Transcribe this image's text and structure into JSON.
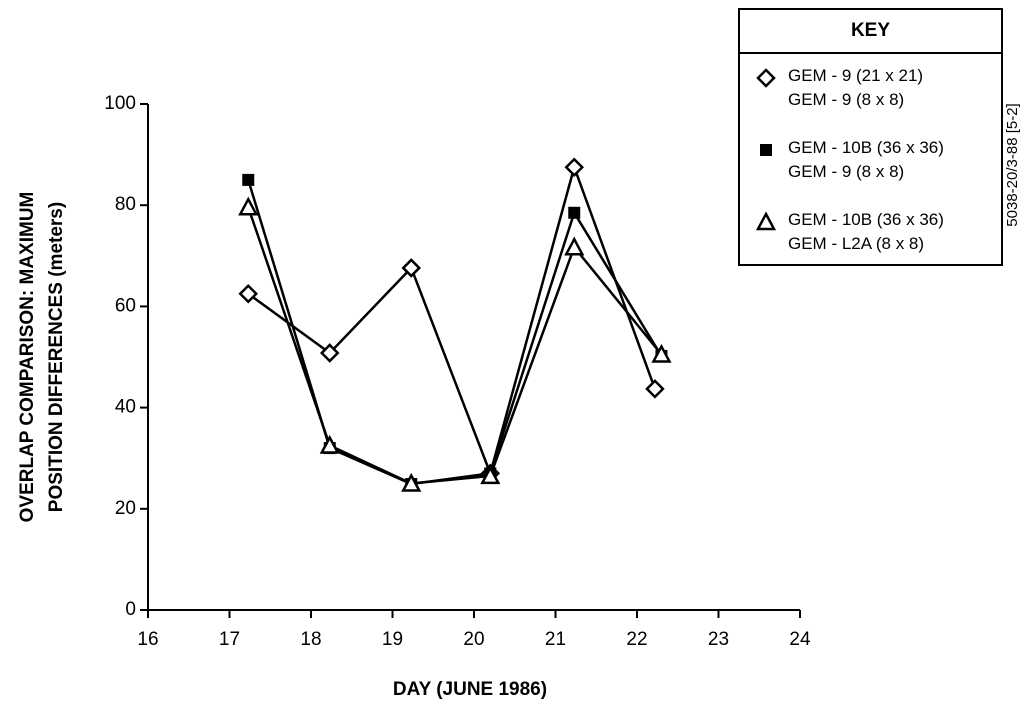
{
  "chart_data": {
    "type": "line",
    "xlabel": "DAY (JUNE 1986)",
    "ylabel": [
      "OVERLAP COMPARISON:  MAXIMUM",
      "POSITION DIFFERENCES (meters)"
    ],
    "legend_title": "KEY",
    "annotation": "5038-20/3-88 [5-2]",
    "xlim": [
      16,
      24
    ],
    "xticks": [
      16,
      17,
      18,
      19,
      20,
      21,
      22,
      23,
      24
    ],
    "ylim": [
      0,
      100
    ],
    "yticks": [
      0,
      20,
      40,
      60,
      80,
      100
    ],
    "series": [
      {
        "name": "GEM - 9 (21 x 21)\nGEM - 9 (8 x 8)",
        "color": "#000000",
        "marker": "diamond",
        "x": [
          17.23,
          18.23,
          19.23,
          20.2,
          21.23,
          22.22
        ],
        "values": [
          62.5,
          50.8,
          67.6,
          27,
          87.5,
          43.7
        ]
      },
      {
        "name": "GEM - 10B (36 x 36)\nGEM - 9 (8 x 8)",
        "color": "#000000",
        "marker": "square",
        "x": [
          17.23,
          18.23,
          19.23,
          20.2,
          21.23,
          22.3
        ],
        "values": [
          85,
          32,
          24.9,
          27,
          78.5,
          50.2
        ]
      },
      {
        "name": "GEM - 10B (36 x 36)\nGEM - L2A (8 x 8)",
        "color": "#000000",
        "marker": "triangle",
        "x": [
          17.23,
          18.23,
          19.23,
          20.2,
          21.23,
          22.3
        ],
        "values": [
          79.6,
          32.5,
          25,
          26.5,
          71.7,
          50.5
        ]
      }
    ]
  }
}
